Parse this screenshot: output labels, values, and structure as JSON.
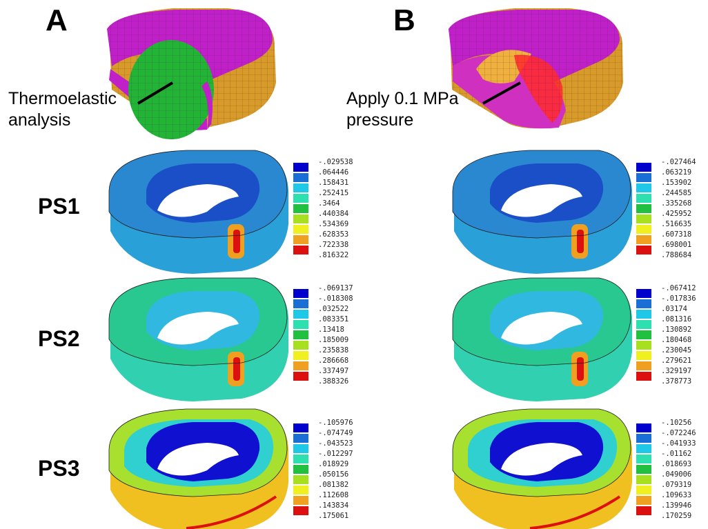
{
  "panel_a": {
    "letter": "A",
    "callout": "Thermoelastic\nanalysis"
  },
  "panel_b": {
    "letter": "B",
    "callout": "Apply 0.1 MPa\npressure"
  },
  "row_labels": [
    "PS1",
    "PS2",
    "PS3"
  ],
  "colors": {
    "shell_magenta": "#c020c8",
    "shell_orange": "#d89a2a",
    "gel_green": "#22b535",
    "pressure_red": "#ff2a2a",
    "contour_scale": [
      "#0000cc",
      "#1a6fd6",
      "#20c8e8",
      "#2ee0b0",
      "#22c040",
      "#a8e020",
      "#f0f020",
      "#f0a020",
      "#f07818",
      "#dd1010"
    ]
  },
  "legends": {
    "a_ps1": [
      "-.029538",
      ".064446",
      ".158431",
      ".252415",
      ".3464",
      ".440384",
      ".534369",
      ".628353",
      ".722338",
      ".816322"
    ],
    "b_ps1": [
      "-.027464",
      ".063219",
      ".153902",
      ".244585",
      ".335268",
      ".425952",
      ".516635",
      ".607318",
      ".698001",
      ".788684"
    ],
    "a_ps2": [
      "-.069137",
      "-.018308",
      ".032522",
      ".083351",
      ".13418",
      ".185009",
      ".235838",
      ".286668",
      ".337497",
      ".388326"
    ],
    "b_ps2": [
      "-.067412",
      "-.017836",
      ".03174",
      ".081316",
      ".130892",
      ".180468",
      ".230045",
      ".279621",
      ".329197",
      ".378773"
    ],
    "a_ps3": [
      "-.105976",
      "-.074749",
      "-.043523",
      "-.012297",
      ".018929",
      ".050156",
      ".081382",
      ".112608",
      ".143834",
      ".175061"
    ],
    "b_ps3": [
      "-.10256",
      "-.072246",
      "-.041933",
      "-.01162",
      ".018693",
      ".049006",
      ".079319",
      ".109633",
      ".139946",
      ".170259"
    ]
  }
}
